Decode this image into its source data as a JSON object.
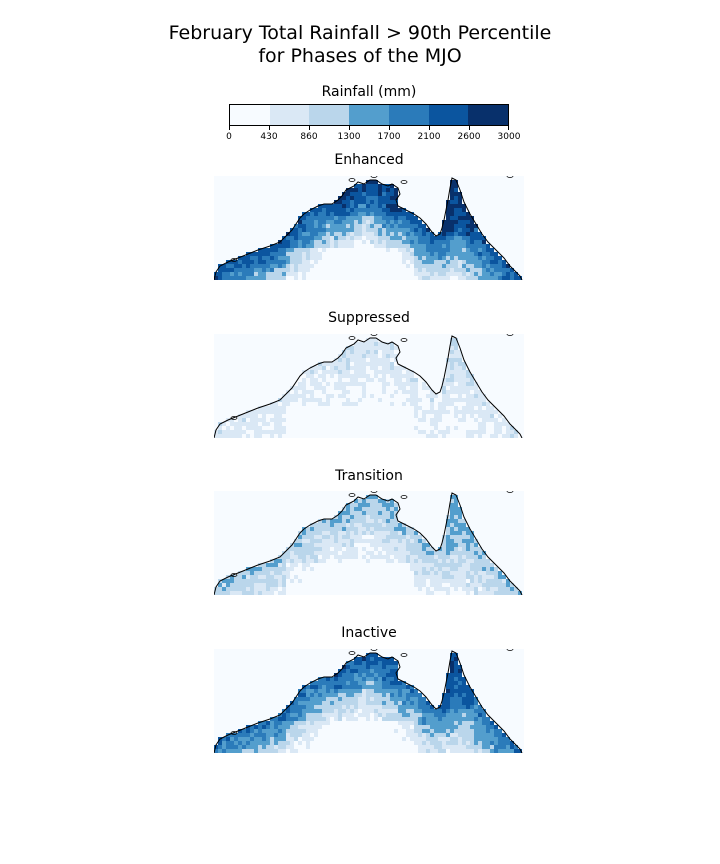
{
  "title": {
    "line1": "February Total Rainfall > 90th Percentile",
    "line2": "for Phases of the MJO"
  },
  "colorbar": {
    "label": "Rainfall (mm)",
    "ticks": [
      "0",
      "430",
      "860",
      "1300",
      "1700",
      "2100",
      "2600",
      "3000"
    ],
    "colors": [
      "#f7fbff",
      "#dae8f5",
      "#bad6eb",
      "#539ecd",
      "#2b7bba",
      "#0b559f",
      "#08306b"
    ]
  },
  "panels": [
    {
      "title": "Enhanced",
      "intensity": 1.0
    },
    {
      "title": "Suppressed",
      "intensity": 0.2
    },
    {
      "title": "Transition",
      "intensity": 0.45
    },
    {
      "title": "Inactive",
      "intensity": 0.85
    }
  ]
}
